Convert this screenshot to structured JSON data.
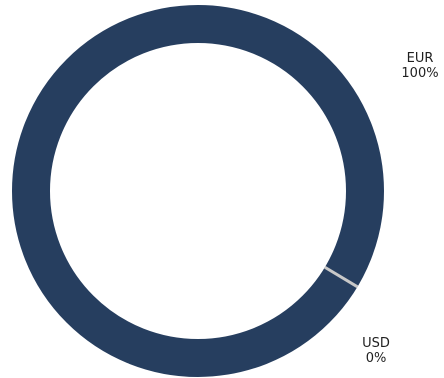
{
  "chart_data": {
    "type": "pie",
    "donut": true,
    "title": "",
    "categories": [
      "EUR",
      "USD"
    ],
    "values": [
      100,
      0
    ],
    "value_labels": [
      "100%",
      "0%"
    ],
    "colors": {
      "EUR": "#263e5f",
      "USD": "#c8c8c8"
    },
    "legend": "none",
    "grid": false
  }
}
